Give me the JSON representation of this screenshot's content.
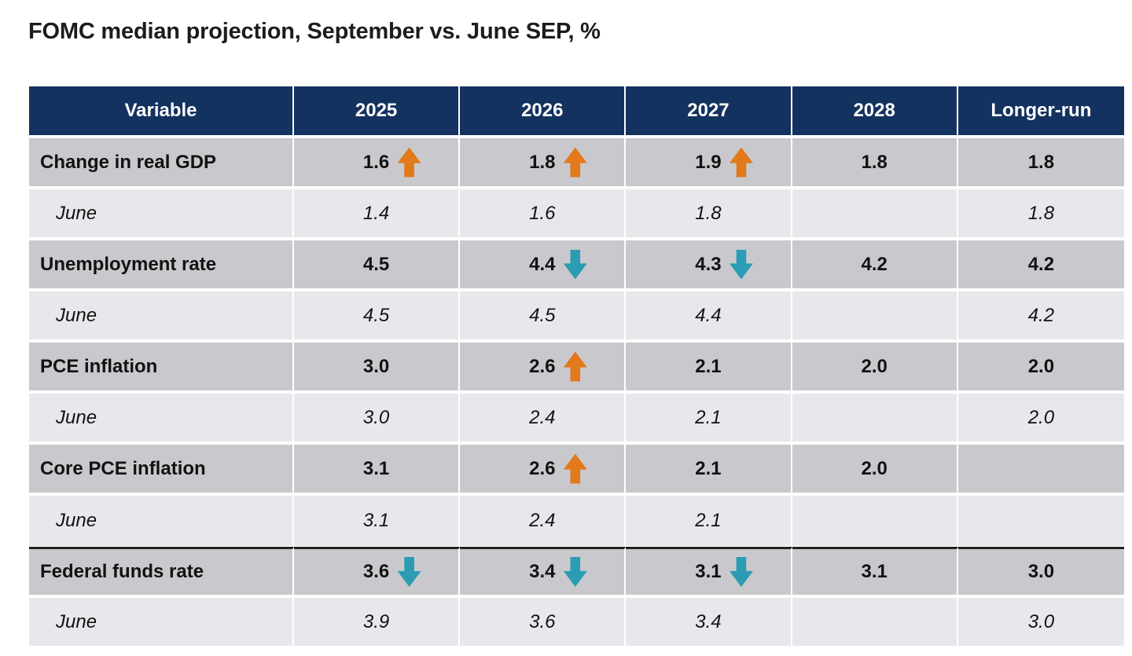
{
  "title": "FOMC median projection, September vs. June SEP, %",
  "colors": {
    "header_bg": "#14325f",
    "main_row_bg": "#c9c9cd",
    "june_row_bg": "#e8e8ec",
    "up_arrow": "#e2791a",
    "down_arrow": "#2b9cb3",
    "separator_line": "#1f1f1f"
  },
  "chart_data": {
    "type": "table",
    "title": "FOMC median projection, September vs. June SEP, %",
    "columns": [
      "Variable",
      "2025",
      "2026",
      "2027",
      "2028",
      "Longer-run"
    ],
    "rows": [
      {
        "label": "Change in real GDP",
        "style": "september",
        "values": [
          "1.6",
          "1.8",
          "1.9",
          "1.8",
          "1.8"
        ],
        "arrows": [
          "up",
          "up",
          "up",
          null,
          null
        ]
      },
      {
        "label": "June",
        "style": "june",
        "values": [
          "1.4",
          "1.6",
          "1.8",
          "",
          "1.8"
        ],
        "arrows": [
          null,
          null,
          null,
          null,
          null
        ]
      },
      {
        "label": "Unemployment rate",
        "style": "september",
        "values": [
          "4.5",
          "4.4",
          "4.3",
          "4.2",
          "4.2"
        ],
        "arrows": [
          null,
          "down",
          "down",
          null,
          null
        ]
      },
      {
        "label": "June",
        "style": "june",
        "values": [
          "4.5",
          "4.5",
          "4.4",
          "",
          "4.2"
        ],
        "arrows": [
          null,
          null,
          null,
          null,
          null
        ]
      },
      {
        "label": "PCE inflation",
        "style": "september",
        "values": [
          "3.0",
          "2.6",
          "2.1",
          "2.0",
          "2.0"
        ],
        "arrows": [
          null,
          "up",
          null,
          null,
          null
        ]
      },
      {
        "label": "June",
        "style": "june",
        "values": [
          "3.0",
          "2.4",
          "2.1",
          "",
          "2.0"
        ],
        "arrows": [
          null,
          null,
          null,
          null,
          null
        ]
      },
      {
        "label": "Core PCE inflation",
        "style": "september",
        "values": [
          "3.1",
          "2.6",
          "2.1",
          "2.0",
          ""
        ],
        "arrows": [
          null,
          "up",
          null,
          null,
          null
        ]
      },
      {
        "label": "June",
        "style": "june",
        "values": [
          "3.1",
          "2.4",
          "2.1",
          "",
          ""
        ],
        "arrows": [
          null,
          null,
          null,
          null,
          null
        ]
      },
      {
        "label": "Federal funds rate",
        "style": "september",
        "separator_above": true,
        "values": [
          "3.6",
          "3.4",
          "3.1",
          "3.1",
          "3.0"
        ],
        "arrows": [
          "down",
          "down",
          "down",
          null,
          null
        ]
      },
      {
        "label": "June",
        "style": "june",
        "values": [
          "3.9",
          "3.6",
          "3.4",
          "",
          "3.0"
        ],
        "arrows": [
          null,
          null,
          null,
          null,
          null
        ]
      }
    ]
  }
}
